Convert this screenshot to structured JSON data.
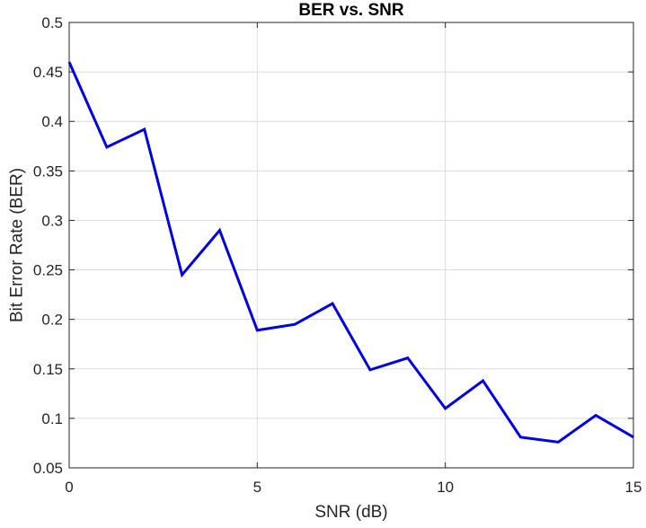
{
  "chart_data": {
    "type": "line",
    "title": "BER vs. SNR",
    "xlabel": "SNR (dB)",
    "ylabel": "Bit Error Rate (BER)",
    "xlim": [
      0,
      15
    ],
    "ylim": [
      0.05,
      0.5
    ],
    "xticks": [
      0,
      5,
      10,
      15
    ],
    "xtick_labels": [
      "0",
      "5",
      "10",
      "15"
    ],
    "yticks": [
      0.05,
      0.1,
      0.15,
      0.2,
      0.25,
      0.3,
      0.35,
      0.4,
      0.45,
      0.5
    ],
    "ytick_labels": [
      "0.05",
      "0.1",
      "0.15",
      "0.2",
      "0.25",
      "0.3",
      "0.35",
      "0.4",
      "0.45",
      "0.5"
    ],
    "grid": true,
    "series": [
      {
        "color": "#0000e0",
        "x": [
          0,
          1,
          2,
          3,
          4,
          5,
          6,
          7,
          8,
          9,
          10,
          11,
          12,
          13,
          14,
          15
        ],
        "y": [
          0.46,
          0.374,
          0.392,
          0.245,
          0.29,
          0.189,
          0.195,
          0.216,
          0.149,
          0.161,
          0.11,
          0.138,
          0.081,
          0.076,
          0.103,
          0.081
        ]
      }
    ]
  }
}
